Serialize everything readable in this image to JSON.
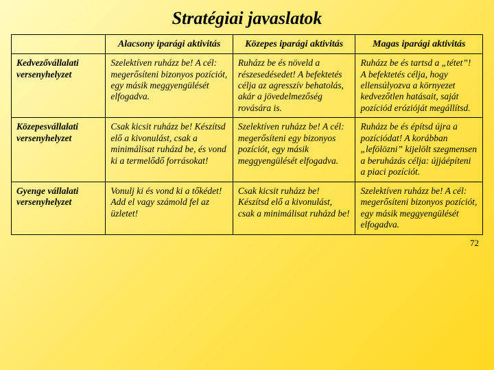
{
  "title": "Stratégiai javaslatok",
  "page_number": "72",
  "colors": {
    "bg_gradient_start": "#fffbc0",
    "bg_gradient_mid": "#ffe760",
    "bg_gradient_end": "#ffd820",
    "border": "#000000",
    "text": "#000000"
  },
  "typography": {
    "font_family": "Times New Roman",
    "title_fontsize_pt": 20,
    "title_style": "bold italic",
    "header_fontsize_pt": 11,
    "header_style": "bold italic",
    "cell_fontsize_pt": 10,
    "cell_style": "italic",
    "rowhead_style": "bold italic"
  },
  "table": {
    "type": "table",
    "column_widths_pct": [
      20,
      27,
      26,
      27
    ],
    "columns": [
      "",
      "Alacsony iparági aktivitás",
      "Közepes iparági aktivitás",
      "Magas iparági aktivitás"
    ],
    "rows": [
      {
        "head": "Kedvezővállalati versenyhelyzet",
        "cells": [
          "Szelektíven ruházz be! A cél: megerősíteni bizonyos pozíciót, egy másik meggyengülését elfogadva.",
          "Ruházz be és növeld a részesedésedet! A befektetés célja az agresszív behatolás, akár a jövedelmezőség rovására is.",
          "Ruházz be és tartsd a „tétet”! A befektetés célja, hogy ellensúlyozva a környezet kedvezőtlen hatásait, saját pozíciód erózióját megállítsd."
        ]
      },
      {
        "head": "Közepesvállalati versenyhelyzet",
        "cells": [
          "Csak kicsit ruházz be! Készítsd elő a kivonulást, csak a minimálisat ruházd be, és vond ki a termelődő forrásokat!",
          "Szelektíven ruházz be! A cél: megerősíteni egy bizonyos pozíciót, egy másik meggyengülését elfogadva.",
          "Ruházz be és építsd újra a pozíciódat! A korábban „lefölözni” kijelölt szegmensen a beruházás célja: újjáépíteni a piaci pozíciót."
        ]
      },
      {
        "head": "Gyenge vállalati versenyhelyzet",
        "cells": [
          "Vonulj ki és vond ki a tőkédet! Add el vagy számold fel az üzletet!",
          "Csak kicsit ruházz be! Készítsd elő a kivonulást, csak a minimálisat ruházd be!",
          "Szelektíven ruházz be! A cél: megerősíteni bizonyos pozíciót, egy másik meggyengülését elfogadva."
        ]
      }
    ]
  }
}
